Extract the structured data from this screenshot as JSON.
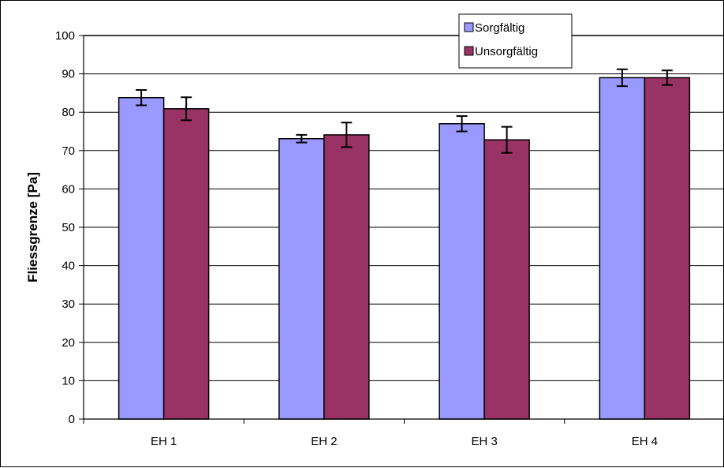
{
  "chart_data": {
    "type": "bar",
    "title": "",
    "xlabel": "",
    "ylabel": "Fliessgrenze [Pa]",
    "ylim": [
      0,
      100
    ],
    "yticks": [
      0,
      10,
      20,
      30,
      40,
      50,
      60,
      70,
      80,
      90,
      100
    ],
    "grid": true,
    "legend_position": "top-right",
    "categories": [
      "EH 1",
      "EH 2",
      "EH 3",
      "EH 4"
    ],
    "series": [
      {
        "name": "Sorgfältig",
        "color": "#9999FF",
        "values": [
          83.8,
          73.1,
          77.0,
          89.0
        ],
        "error": [
          2.0,
          1.0,
          2.0,
          2.2
        ]
      },
      {
        "name": "Unsorgfältig",
        "color": "#993366",
        "values": [
          80.9,
          74.1,
          72.8,
          89.0
        ],
        "error": [
          3.0,
          3.2,
          3.4,
          1.9
        ]
      }
    ]
  }
}
